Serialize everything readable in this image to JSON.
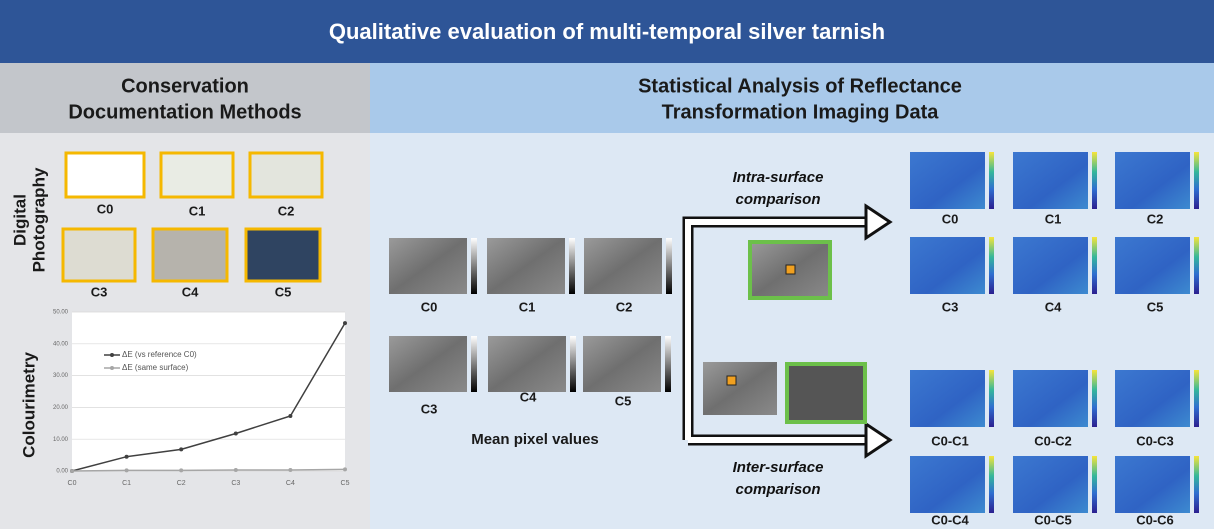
{
  "header": {
    "title": "Qualitative evaluation of multi-temporal silver tarnish"
  },
  "left_panel": {
    "title_lines": [
      "Conservation",
      "Documentation Methods"
    ],
    "photography": {
      "label_lines": [
        "Digital",
        "Photography"
      ],
      "samples": [
        "C0",
        "C1",
        "C2",
        "C3",
        "C4",
        "C5"
      ]
    },
    "colourimetry": {
      "label": "Colourimetry"
    }
  },
  "chart_data": {
    "type": "line",
    "categories": [
      "C0",
      "C1",
      "C2",
      "C3",
      "C4",
      "C5"
    ],
    "series": [
      {
        "name": "ΔE (vs reference C0)",
        "color": "#404040",
        "values": [
          0,
          4.5,
          6.8,
          11.8,
          17.3,
          46.5
        ]
      },
      {
        "name": "ΔE (same surface)",
        "color": "#a6a6a6",
        "values": [
          0,
          0.2,
          0.2,
          0.3,
          0.3,
          0.5
        ]
      }
    ],
    "ylim": [
      0,
      50
    ],
    "yticks": [
      {
        "value": 0,
        "label": "0.00"
      },
      {
        "value": 10,
        "label": "10.00"
      },
      {
        "value": 20,
        "label": "20.00"
      },
      {
        "value": 30,
        "label": "30.00"
      },
      {
        "value": 40,
        "label": "40.00"
      },
      {
        "value": 50,
        "label": "50.00"
      }
    ],
    "grid": true,
    "legend": "top-left"
  },
  "right_panel": {
    "title_lines": [
      "Statistical Analysis of Reflectance",
      "Transformation Imaging Data"
    ],
    "mean_pixel": {
      "label": "Mean pixel values",
      "samples": [
        "C0",
        "C1",
        "C2",
        "C3",
        "C4",
        "C5"
      ]
    },
    "intra": {
      "label_lines": [
        "Intra-surface",
        "comparison"
      ],
      "maps": [
        "C0",
        "C1",
        "C2",
        "C3",
        "C4",
        "C5"
      ]
    },
    "inter": {
      "label_lines": [
        "Inter-surface",
        "comparison"
      ],
      "maps": [
        "C0-C1",
        "C0-C2",
        "C0-C3",
        "C0-C4",
        "C0-C5",
        "C0-C6"
      ]
    }
  }
}
